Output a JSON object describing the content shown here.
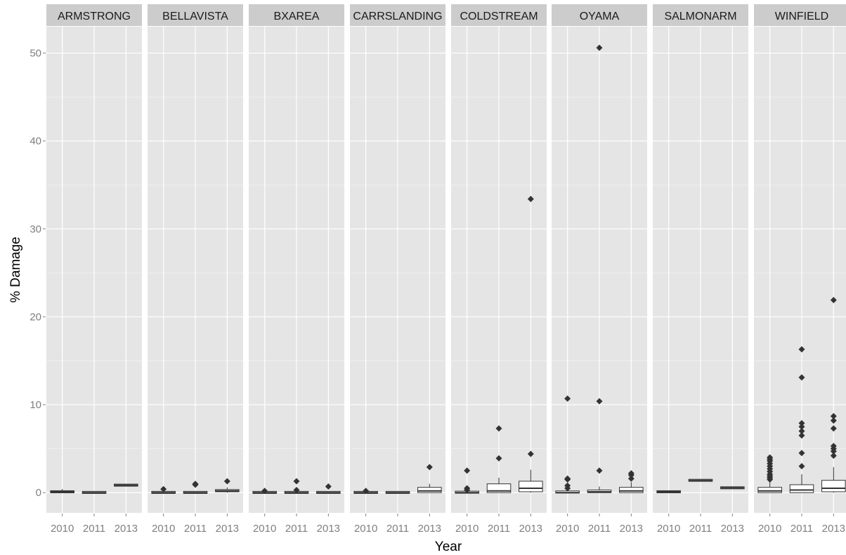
{
  "chart_data": {
    "type": "boxplot",
    "xlabel": "Year",
    "ylabel": "% Damage",
    "ylim": [
      -2.3,
      53
    ],
    "y_ticks": [
      0,
      10,
      20,
      30,
      40,
      50
    ],
    "grid": true,
    "facets": [
      {
        "name": "ARMSTRONG",
        "boxes": [
          {
            "year": "2010",
            "q1": 0.0,
            "median": 0.1,
            "q3": 0.2,
            "lower": 0.0,
            "upper": 0.4,
            "outliers": []
          },
          {
            "year": "2011",
            "q1": 0.0,
            "median": 0.0,
            "q3": 0.05,
            "lower": 0.0,
            "upper": 0.1,
            "outliers": []
          },
          {
            "year": "2013",
            "q1": 0.8,
            "median": 0.85,
            "q3": 0.9,
            "lower": 0.75,
            "upper": 0.95,
            "outliers": []
          }
        ]
      },
      {
        "name": "BELLAVISTA",
        "boxes": [
          {
            "year": "2010",
            "q1": 0.0,
            "median": 0.0,
            "q3": 0.05,
            "lower": 0.0,
            "upper": 0.1,
            "outliers": [
              0.4
            ]
          },
          {
            "year": "2011",
            "q1": 0.0,
            "median": 0.0,
            "q3": 0.05,
            "lower": 0.0,
            "upper": 0.1,
            "outliers": [
              0.9,
              1.0
            ]
          },
          {
            "year": "2013",
            "q1": 0.1,
            "median": 0.2,
            "q3": 0.35,
            "lower": 0.0,
            "upper": 0.6,
            "outliers": [
              1.3
            ]
          }
        ]
      },
      {
        "name": "BXAREA",
        "boxes": [
          {
            "year": "2010",
            "q1": 0.0,
            "median": 0.0,
            "q3": 0.05,
            "lower": 0.0,
            "upper": 0.1,
            "outliers": [
              0.2
            ]
          },
          {
            "year": "2011",
            "q1": 0.0,
            "median": 0.0,
            "q3": 0.05,
            "lower": 0.0,
            "upper": 0.1,
            "outliers": [
              0.3,
              1.3
            ]
          },
          {
            "year": "2013",
            "q1": 0.0,
            "median": 0.0,
            "q3": 0.05,
            "lower": 0.0,
            "upper": 0.1,
            "outliers": [
              0.7
            ]
          }
        ]
      },
      {
        "name": "CARRSLANDING",
        "boxes": [
          {
            "year": "2010",
            "q1": 0.0,
            "median": 0.0,
            "q3": 0.05,
            "lower": 0.0,
            "upper": 0.1,
            "outliers": [
              0.2
            ]
          },
          {
            "year": "2011",
            "q1": 0.0,
            "median": 0.0,
            "q3": 0.05,
            "lower": 0.0,
            "upper": 0.1,
            "outliers": []
          },
          {
            "year": "2013",
            "q1": 0.0,
            "median": 0.2,
            "q3": 0.6,
            "lower": 0.0,
            "upper": 1.0,
            "outliers": [
              2.9
            ]
          }
        ]
      },
      {
        "name": "COLDSTREAM",
        "boxes": [
          {
            "year": "2010",
            "q1": 0.0,
            "median": 0.0,
            "q3": 0.1,
            "lower": 0.0,
            "upper": 0.2,
            "outliers": [
              0.3,
              0.5,
              2.5
            ]
          },
          {
            "year": "2011",
            "q1": 0.0,
            "median": 0.2,
            "q3": 1.0,
            "lower": 0.0,
            "upper": 1.7,
            "outliers": [
              3.9,
              7.3
            ]
          },
          {
            "year": "2013",
            "q1": 0.1,
            "median": 0.5,
            "q3": 1.3,
            "lower": 0.0,
            "upper": 2.6,
            "outliers": [
              4.4,
              33.4
            ]
          }
        ]
      },
      {
        "name": "OYAMA",
        "boxes": [
          {
            "year": "2010",
            "q1": 0.0,
            "median": 0.0,
            "q3": 0.15,
            "lower": 0.0,
            "upper": 0.3,
            "outliers": [
              0.5,
              0.8,
              1.5,
              1.6,
              10.7
            ]
          },
          {
            "year": "2011",
            "q1": 0.0,
            "median": 0.1,
            "q3": 0.3,
            "lower": 0.0,
            "upper": 0.7,
            "outliers": [
              2.5,
              10.4,
              50.6
            ]
          },
          {
            "year": "2013",
            "q1": 0.0,
            "median": 0.2,
            "q3": 0.6,
            "lower": 0.0,
            "upper": 1.2,
            "outliers": [
              1.6,
              2.0,
              2.2
            ]
          }
        ]
      },
      {
        "name": "SALMONARM",
        "boxes": [
          {
            "year": "2010",
            "q1": 0.0,
            "median": 0.1,
            "q3": 0.2,
            "lower": 0.0,
            "upper": 0.25,
            "outliers": []
          },
          {
            "year": "2011",
            "q1": 1.35,
            "median": 1.4,
            "q3": 1.45,
            "lower": 1.3,
            "upper": 1.5,
            "outliers": []
          },
          {
            "year": "2013",
            "q1": 0.5,
            "median": 0.55,
            "q3": 0.6,
            "lower": 0.45,
            "upper": 0.65,
            "outliers": []
          }
        ]
      },
      {
        "name": "WINFIELD",
        "boxes": [
          {
            "year": "2010",
            "q1": 0.0,
            "median": 0.2,
            "q3": 0.6,
            "lower": 0.0,
            "upper": 1.3,
            "outliers": [
              1.5,
              1.7,
              1.9,
              2.1,
              2.4,
              2.7,
              3.0,
              3.3,
              3.6,
              3.8,
              4.0
            ]
          },
          {
            "year": "2011",
            "q1": 0.0,
            "median": 0.3,
            "q3": 0.9,
            "lower": 0.0,
            "upper": 2.1,
            "outliers": [
              3.0,
              4.5,
              6.5,
              7.0,
              7.5,
              7.9,
              13.1,
              16.3
            ]
          },
          {
            "year": "2013",
            "q1": 0.1,
            "median": 0.5,
            "q3": 1.4,
            "lower": 0.0,
            "upper": 2.9,
            "outliers": [
              4.2,
              4.7,
              5.0,
              5.3,
              7.3,
              8.2,
              8.7,
              21.9
            ]
          }
        ]
      }
    ]
  },
  "colors": {
    "panel_background": "#e5e5e5",
    "grid_major": "#ffffff",
    "grid_minor": "#f2f2f2",
    "strip_background": "#cccccc",
    "box_fill": "#ffffff",
    "box_stroke": "#333333",
    "outlier": "#333333",
    "tick_label": "#7f7f7f"
  }
}
